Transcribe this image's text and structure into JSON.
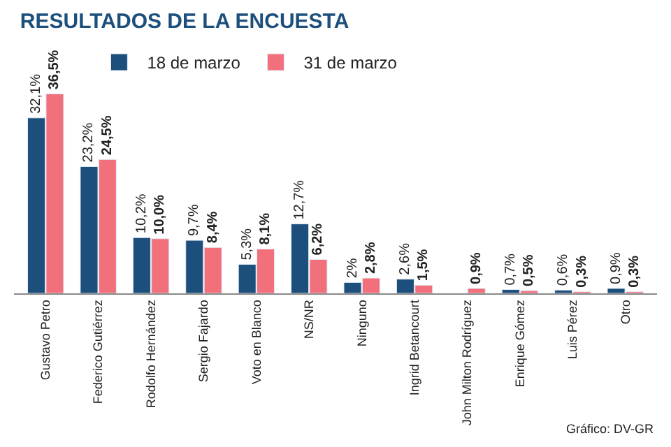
{
  "chart_data": {
    "type": "bar",
    "title": "RESULTADOS DE LA ENCUESTA",
    "categories": [
      "Gustavo Petro",
      "Federico Gutiérrez",
      "Rodolfo Hernández",
      "Sergio Fajardo",
      "Voto en Blanco",
      "NS/NR",
      "Ninguno",
      "Ingrid Betancourt",
      "John Milton Rodríguez",
      "Enrique Gómez",
      "Luis Pérez",
      "Otro"
    ],
    "series": [
      {
        "name": "18 de marzo",
        "color": "#1d4f7c",
        "values": [
          32.1,
          23.2,
          10.2,
          9.7,
          5.3,
          12.7,
          2,
          2.6,
          null,
          0.7,
          0.6,
          0.9
        ],
        "value_labels": [
          "32,1%",
          "23,2%",
          "10,2%",
          "9,7%",
          "5,3%",
          "12,7%",
          "2%",
          "2,6%",
          null,
          "0,7%",
          "0,6%",
          "0,9%"
        ]
      },
      {
        "name": "31 de marzo",
        "color": "#f2707c",
        "values": [
          36.5,
          24.5,
          10.0,
          8.4,
          8.1,
          6.2,
          2.8,
          1.5,
          0.9,
          0.5,
          0.3,
          0.3
        ],
        "value_labels": [
          "36,5%",
          "24,5%",
          "10,0%",
          "8,4%",
          "8,1%",
          "6,2%",
          "2,8%",
          "1,5%",
          "0,9%",
          "0,5%",
          "0,3%",
          "0,3%"
        ]
      }
    ],
    "legend": "top left",
    "tick_labels": "x",
    "annotations": [
      "Gráfico: DV-GR"
    ]
  }
}
